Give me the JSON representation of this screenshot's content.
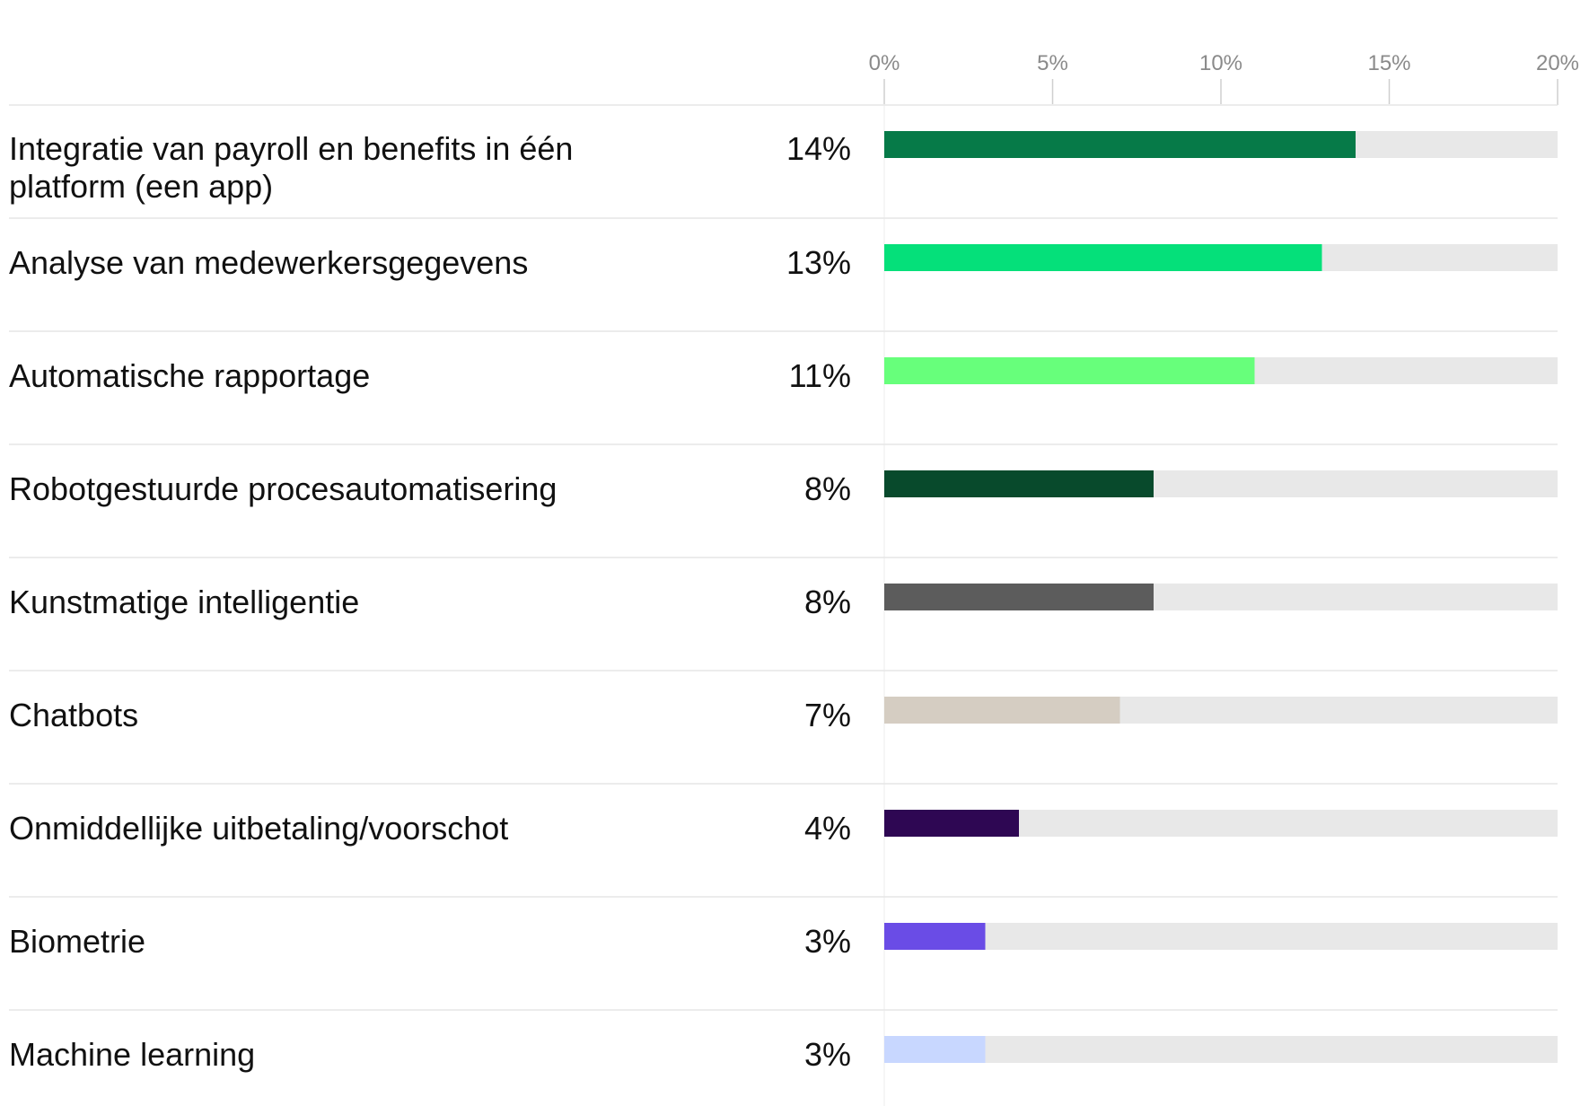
{
  "chart_data": {
    "type": "bar",
    "orientation": "horizontal",
    "xlim": [
      0,
      20
    ],
    "ticks": [
      "0%",
      "5%",
      "10%",
      "15%",
      "20%"
    ],
    "tick_values": [
      0,
      5,
      10,
      15,
      20
    ],
    "track_color": "#e8e8e8",
    "categories": [
      "Integratie van payroll en benefits in één platform (een app)",
      "Analyse van medewerkersgegevens",
      "Automatische rapportage",
      "Robotgestuurde procesautomatisering",
      "Kunstmatige intelligentie",
      "Chatbots",
      "Onmiddellijke uitbetaling/voorschot",
      "Biometrie",
      "Machine learning"
    ],
    "values": [
      14,
      13,
      11,
      8,
      8,
      7,
      4,
      3,
      3
    ],
    "value_labels": [
      "14%",
      "13%",
      "11%",
      "8%",
      "8%",
      "7%",
      "4%",
      "3%",
      "3%"
    ],
    "colors": [
      "#067a48",
      "#05e07a",
      "#67ff7b",
      "#084a2c",
      "#5c5c5c",
      "#d5cdc2",
      "#2e0753",
      "#6a4ce6",
      "#c8d7ff"
    ]
  }
}
